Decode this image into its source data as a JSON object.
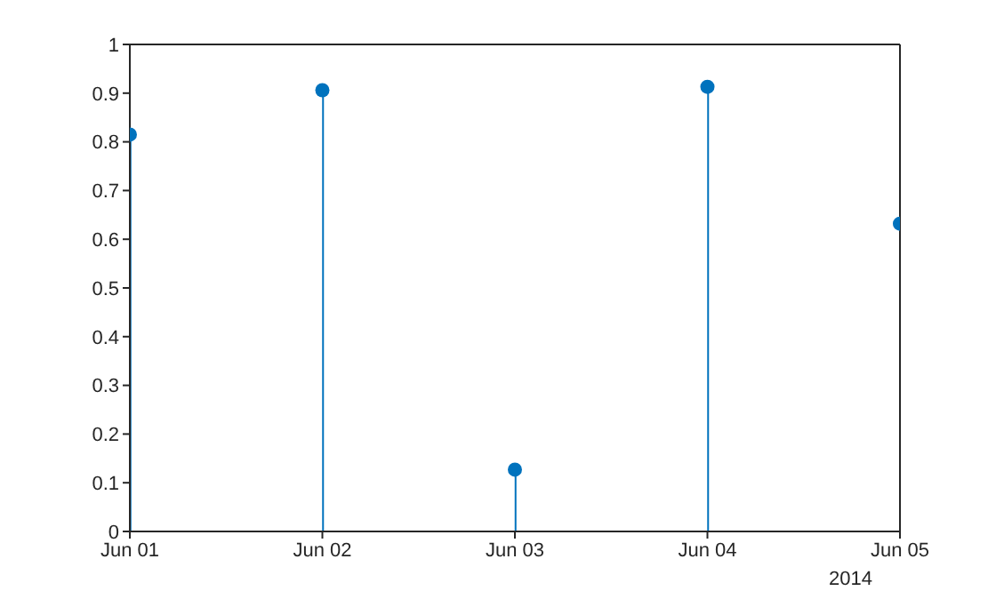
{
  "chart_data": {
    "type": "lollipop",
    "x": [
      "2014-06-01",
      "2014-06-02",
      "2014-06-03",
      "2014-06-04",
      "2014-06-05"
    ],
    "values": [
      0.815,
      0.906,
      0.127,
      0.913,
      0.632
    ],
    "color": "#0072bd",
    "xlim": [
      "2014-06-01",
      "2014-06-05"
    ],
    "xticks": [
      {
        "value": "2014-06-01",
        "label": "Jun 01"
      },
      {
        "value": "2014-06-02",
        "label": "Jun 02"
      },
      {
        "value": "2014-06-03",
        "label": "Jun 03"
      },
      {
        "value": "2014-06-04",
        "label": "Jun 04"
      },
      {
        "value": "2014-06-05",
        "label": "Jun 05"
      }
    ],
    "ylim": [
      0,
      1
    ],
    "yticks": [
      0,
      0.1,
      0.2,
      0.3,
      0.4,
      0.5,
      0.6,
      0.7,
      0.8,
      0.9,
      1
    ],
    "grid": false,
    "marker": "circle",
    "annotations": [
      "2014"
    ]
  }
}
